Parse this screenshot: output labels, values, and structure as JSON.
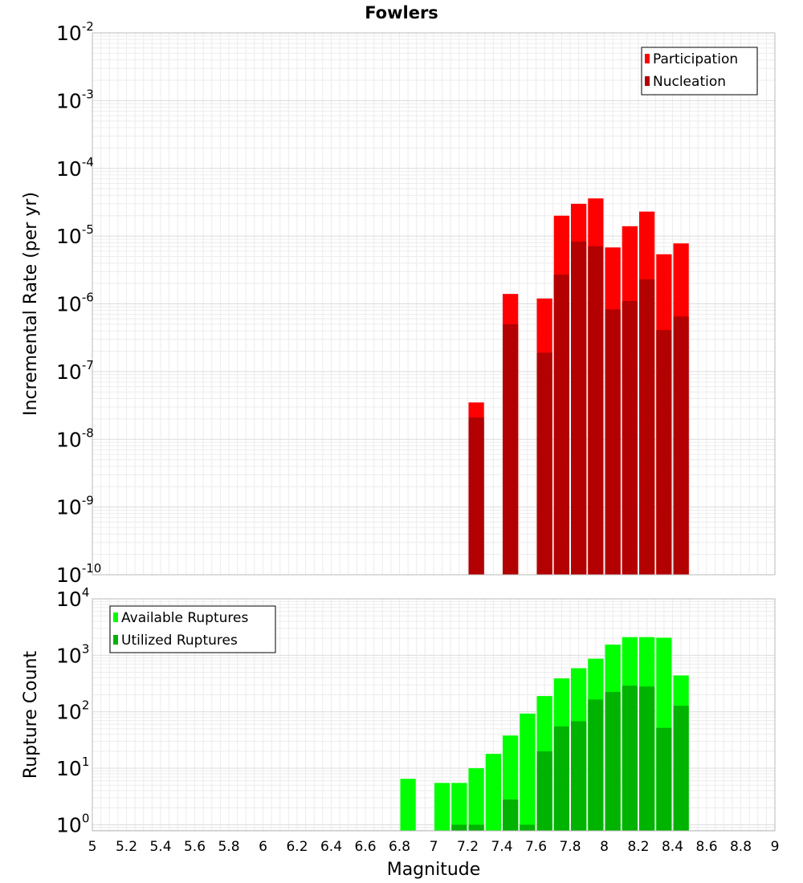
{
  "chart_data": {
    "title": "Fowlers",
    "xlabel": "Magnitude",
    "xlim": [
      5,
      9
    ],
    "x_ticks": [
      "5",
      "5.2",
      "5.4",
      "5.6",
      "5.8",
      "6",
      "6.2",
      "6.4",
      "6.6",
      "6.8",
      "7",
      "7.2",
      "7.4",
      "7.6",
      "7.8",
      "8",
      "8.2",
      "8.4",
      "8.6",
      "8.8",
      "9"
    ],
    "grid": true,
    "bin_width": 0.1,
    "charts": [
      {
        "id": "rate",
        "type": "bar",
        "y_scale": "log",
        "ylabel": "Incremental Rate (per yr)",
        "ylim": [
          1e-10,
          0.01
        ],
        "y_tick_exponents": [
          -10,
          -9,
          -8,
          -7,
          -6,
          -5,
          -4,
          -3,
          -2
        ],
        "legend_position": "top-right",
        "x": [
          7.25,
          7.45,
          7.65,
          7.75,
          7.85,
          7.95,
          8.05,
          8.15,
          8.25,
          8.35,
          8.45
        ],
        "series": [
          {
            "name": "Participation",
            "color": "#ff0000",
            "values": [
              3.5e-08,
              1.4e-06,
              1.2e-06,
              2e-05,
              3e-05,
              3.6e-05,
              6.8e-06,
              1.4e-05,
              2.3e-05,
              5.4e-06,
              7.8e-06
            ]
          },
          {
            "name": "Nucleation",
            "color": "#b30000",
            "values": [
              2.1e-08,
              5e-07,
              1.9e-07,
              2.7e-06,
              8.3e-06,
              7.1e-06,
              8.3e-07,
              1.1e-06,
              2.3e-06,
              4.1e-07,
              6.5e-07
            ]
          }
        ]
      },
      {
        "id": "count",
        "type": "bar",
        "y_scale": "log",
        "ylabel": "Rupture Count",
        "ylim": [
          0.78,
          10000
        ],
        "y_tick_exponents": [
          0,
          1,
          2,
          3,
          4
        ],
        "legend_position": "top-left",
        "x": [
          6.85,
          7.05,
          7.15,
          7.25,
          7.35,
          7.45,
          7.55,
          7.65,
          7.75,
          7.85,
          7.95,
          8.05,
          8.15,
          8.25,
          8.35,
          8.45
        ],
        "series": [
          {
            "name": "Available Ruptures",
            "color": "#00ff00",
            "values": [
              6.5,
              5.5,
              5.5,
              10,
              18,
              38,
              93,
              190,
              390,
              590,
              870,
              1550,
              2100,
              2100,
              2050,
              440
            ]
          },
          {
            "name": "Utilized Ruptures",
            "color": "#00b300",
            "values": [
              0,
              0,
              1,
              1,
              0,
              2.8,
              1,
              20,
              55,
              68,
              165,
              225,
              290,
              280,
              52,
              128
            ]
          }
        ]
      }
    ]
  }
}
